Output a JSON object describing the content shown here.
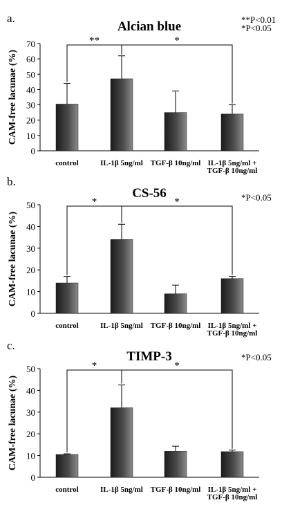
{
  "significance_legend": [
    {
      "stars": "**",
      "text": "P<0.01"
    },
    {
      "stars": "*",
      "text": "P<0.05"
    }
  ],
  "chart_data": [
    {
      "type": "bar",
      "panel_label": "a.",
      "title": "Alcian blue",
      "ylabel": "CAM-free lacunae (%)",
      "ylim": [
        0,
        70
      ],
      "yticks": [
        0,
        10,
        20,
        30,
        40,
        50,
        60,
        70
      ],
      "categories": [
        [
          "control"
        ],
        [
          "IL-1β 5ng/ml"
        ],
        [
          "TGF-β 10ng/ml"
        ],
        [
          "IL-1β 5ng/ml +",
          "TGF-β 10ng/ml"
        ]
      ],
      "values": [
        30.5,
        47,
        25,
        24
      ],
      "error_upper": [
        44,
        62,
        39,
        30
      ],
      "significance": [
        {
          "from": 0,
          "to": 1,
          "label": "**"
        },
        {
          "from": 1,
          "to": 3,
          "label": "*"
        }
      ],
      "legend": [
        "**P<0.01",
        "*P<0.05"
      ]
    },
    {
      "type": "bar",
      "panel_label": "b.",
      "title": "CS-56",
      "ylabel": "CAM-free lacunae (%)",
      "ylim": [
        0,
        50
      ],
      "yticks": [
        0,
        10,
        20,
        30,
        40,
        50
      ],
      "categories": [
        [
          "control"
        ],
        [
          "IL-1β 5ng/ml"
        ],
        [
          "TGF-β 10ng/ml"
        ],
        [
          "IL-1β 5ng/ml +",
          "TGF-β 10ng/ml"
        ]
      ],
      "values": [
        14,
        34,
        9,
        16
      ],
      "error_upper": [
        17,
        41,
        13,
        17
      ],
      "significance": [
        {
          "from": 0,
          "to": 1,
          "label": "*"
        },
        {
          "from": 1,
          "to": 3,
          "label": "*"
        }
      ],
      "legend": [
        "*P<0.05"
      ]
    },
    {
      "type": "bar",
      "panel_label": "c.",
      "title": "TIMP-3",
      "ylabel": "CAM-free lacunae (%)",
      "ylim": [
        0,
        50
      ],
      "yticks": [
        0,
        10,
        20,
        30,
        40,
        50
      ],
      "categories": [
        [
          "control"
        ],
        [
          "IL-1β 5ng/ml"
        ],
        [
          "TGF-β 10ng/ml"
        ],
        [
          "IL-1β 5ng/ml +",
          "TGF-β 10ng/ml"
        ]
      ],
      "values": [
        10.5,
        32,
        12,
        11.8
      ],
      "error_upper": [
        10.8,
        42.5,
        14.3,
        12.5
      ],
      "significance": [
        {
          "from": 0,
          "to": 1,
          "label": "*"
        },
        {
          "from": 1,
          "to": 3,
          "label": "*"
        }
      ],
      "legend": [
        "*P<0.05"
      ]
    }
  ]
}
